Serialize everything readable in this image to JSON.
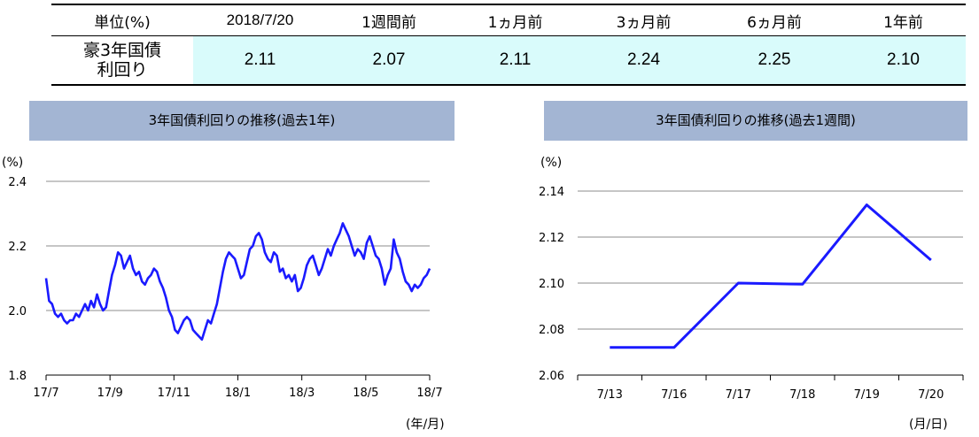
{
  "summary": {
    "headers": [
      "単位(%)",
      "2018/7/20",
      "1週間前",
      "1ヵ月前",
      "3ヵ月前",
      "6ヵ月前",
      "1年前"
    ],
    "row_label_line1": "豪3年国債",
    "row_label_line2": "利回り",
    "values": [
      "2.11",
      "2.07",
      "2.11",
      "2.24",
      "2.25",
      "2.10"
    ]
  },
  "chart_data": [
    {
      "type": "line",
      "title": "3年国債利回りの推移(過去1年)",
      "yunit": "(%)",
      "xunit": "(年/月)",
      "ylim": [
        1.8,
        2.4
      ],
      "yticks": [
        "1.8",
        "2.0",
        "2.2",
        "2.4"
      ],
      "xticks": [
        "17/7",
        "17/9",
        "17/11",
        "18/1",
        "18/3",
        "18/5",
        "18/7"
      ],
      "grid": true,
      "series_color": "#1a1aff",
      "series": [
        {
          "values": [
            2.1,
            2.03,
            2.02,
            1.99,
            1.98,
            1.99,
            1.97,
            1.96,
            1.97,
            1.97,
            1.99,
            1.98,
            2.0,
            2.02,
            2.0,
            2.03,
            2.01,
            2.05,
            2.02,
            2.0,
            2.01,
            2.06,
            2.11,
            2.14,
            2.18,
            2.17,
            2.13,
            2.15,
            2.17,
            2.13,
            2.11,
            2.12,
            2.09,
            2.08,
            2.1,
            2.11,
            2.13,
            2.12,
            2.09,
            2.07,
            2.04,
            2.0,
            1.98,
            1.94,
            1.93,
            1.95,
            1.97,
            1.98,
            1.97,
            1.94,
            1.93,
            1.92,
            1.91,
            1.94,
            1.97,
            1.96,
            1.99,
            2.02,
            2.07,
            2.12,
            2.16,
            2.18,
            2.17,
            2.16,
            2.13,
            2.1,
            2.11,
            2.15,
            2.19,
            2.2,
            2.23,
            2.24,
            2.22,
            2.18,
            2.16,
            2.15,
            2.18,
            2.17,
            2.12,
            2.13,
            2.1,
            2.11,
            2.09,
            2.11,
            2.06,
            2.07,
            2.1,
            2.14,
            2.16,
            2.17,
            2.14,
            2.11,
            2.13,
            2.16,
            2.19,
            2.17,
            2.2,
            2.22,
            2.24,
            2.27,
            2.25,
            2.23,
            2.2,
            2.17,
            2.19,
            2.18,
            2.16,
            2.21,
            2.23,
            2.2,
            2.17,
            2.16,
            2.13,
            2.08,
            2.11,
            2.13,
            2.22,
            2.18,
            2.16,
            2.12,
            2.09,
            2.08,
            2.06,
            2.08,
            2.07,
            2.08,
            2.1,
            2.11,
            2.13
          ]
        }
      ]
    },
    {
      "type": "line",
      "title": "3年国債利回りの推移(過去1週間)",
      "yunit": "(%)",
      "xunit": "(月/日)",
      "ylim": [
        2.06,
        2.14
      ],
      "yticks": [
        "2.06",
        "2.08",
        "2.10",
        "2.12",
        "2.14"
      ],
      "categories": [
        "7/13",
        "7/16",
        "7/17",
        "7/18",
        "7/19",
        "7/20"
      ],
      "grid": true,
      "series_color": "#1a1aff",
      "series": [
        {
          "values": [
            2.072,
            2.072,
            2.1,
            2.0995,
            2.134,
            2.11
          ]
        }
      ]
    }
  ]
}
